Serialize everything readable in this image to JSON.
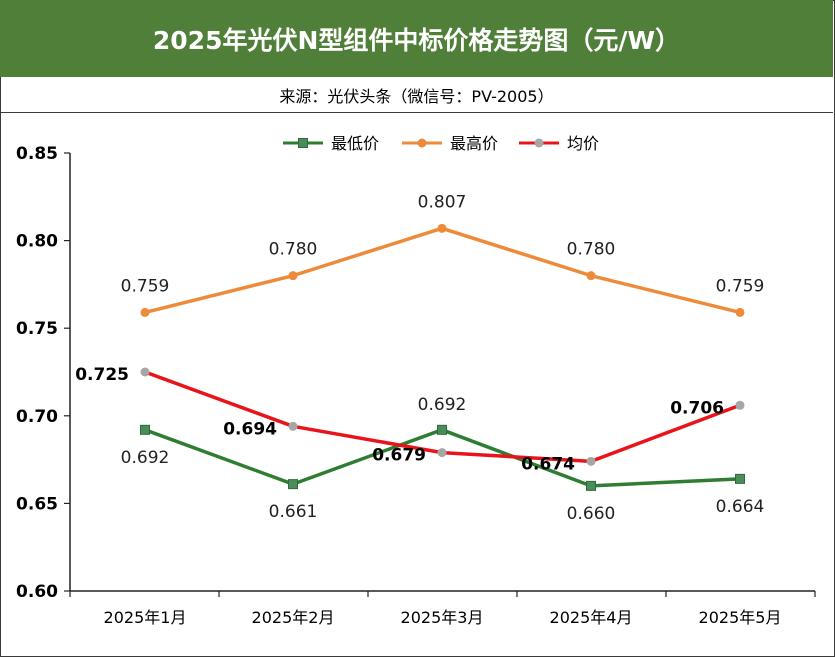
{
  "title": "2025年光伏N型组件中标价格走势图（元/W）",
  "source": "来源：光伏头条（微信号：PV-2005）",
  "chart_data": {
    "type": "line",
    "categories": [
      "2025年1月",
      "2025年2月",
      "2025年3月",
      "2025年4月",
      "2025年5月"
    ],
    "ylim": [
      0.6,
      0.85
    ],
    "yticks": [
      "0.85",
      "0.80",
      "0.75",
      "0.70",
      "0.65",
      "0.60"
    ],
    "grid": false,
    "legend_position": "top",
    "series": [
      {
        "name": "最低价",
        "color": "#2e7d32",
        "marker": "square",
        "values": [
          0.692,
          0.661,
          0.692,
          0.66,
          0.664
        ],
        "labels": [
          "0.692",
          "0.661",
          "0.692",
          "0.660",
          "0.664"
        ]
      },
      {
        "name": "最高价",
        "color": "#ed8b3a",
        "marker": "circle",
        "values": [
          0.759,
          0.78,
          0.807,
          0.78,
          0.759
        ],
        "labels": [
          "0.759",
          "0.780",
          "0.807",
          "0.780",
          "0.759"
        ]
      },
      {
        "name": "均价",
        "color": "#e8141a",
        "marker": "circle-gray",
        "values": [
          0.725,
          0.694,
          0.679,
          0.674,
          0.706
        ],
        "labels": [
          "0.725",
          "0.694",
          "0.679",
          "0.674",
          "0.706"
        ]
      }
    ]
  }
}
